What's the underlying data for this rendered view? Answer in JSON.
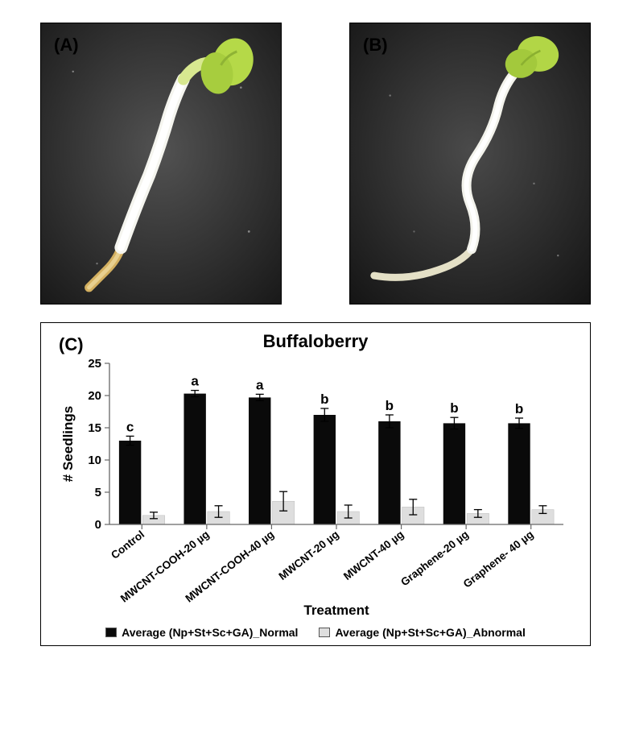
{
  "panels": {
    "A": {
      "label": "(A)"
    },
    "B": {
      "label": "(B)"
    },
    "C": {
      "label": "(C)"
    }
  },
  "chart": {
    "type": "bar",
    "title": "Buffaloberry",
    "ylabel": "# Seedlings",
    "xlabel": "Treatment",
    "ylim": [
      0,
      25
    ],
    "ytick_step": 5,
    "yticks": [
      0,
      5,
      10,
      15,
      20,
      25
    ],
    "categories": [
      "Control",
      "MWCNT-COOH-20 µg",
      "MWCNT-COOH-40 µg",
      "MWCNT-20 µg",
      "MWCNT-40 µg",
      "Graphene-20 µg",
      "Graphene- 40 µg"
    ],
    "sig_letters": [
      "c",
      "a",
      "a",
      "b",
      "b",
      "b",
      "b"
    ],
    "series": [
      {
        "name": "Average (Np+St+Sc+GA)_Normal",
        "color": "#0a0a0a",
        "values": [
          13.0,
          20.3,
          19.7,
          17.0,
          16.0,
          15.7,
          15.7
        ],
        "errors": [
          0.7,
          0.5,
          0.5,
          1.0,
          1.0,
          0.9,
          0.8
        ]
      },
      {
        "name": "Average (Np+St+Sc+GA)_Abnormal",
        "color": "#dedede",
        "values": [
          1.4,
          2.0,
          3.6,
          2.0,
          2.7,
          1.7,
          2.3
        ],
        "errors": [
          0.5,
          0.9,
          1.5,
          1.0,
          1.2,
          0.6,
          0.6
        ]
      }
    ],
    "label_fontsize": 17,
    "title_fontsize": 22,
    "tick_fontsize": 14,
    "sig_fontsize": 17,
    "background_color": "#ffffff",
    "tick_color": "#686868",
    "axis_color": "#686868",
    "x_label_rotation": -38
  },
  "photo_bg": "#2c2c2c"
}
